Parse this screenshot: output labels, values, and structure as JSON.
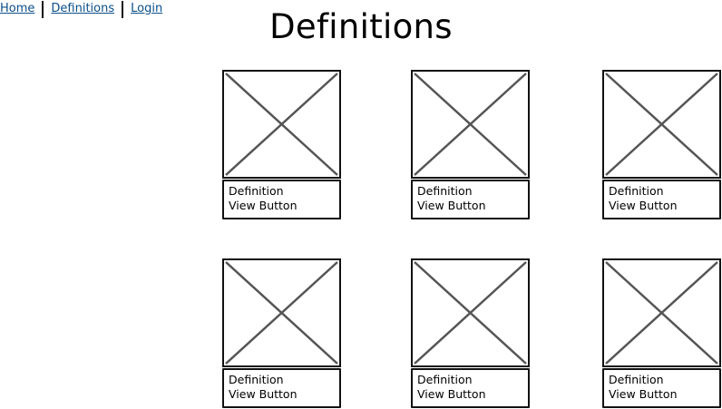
{
  "nav": {
    "items": [
      {
        "label": "Home"
      },
      {
        "label": "Definitions"
      },
      {
        "label": "Login"
      }
    ]
  },
  "page": {
    "title": "Definitions"
  },
  "cards": [
    {
      "definition": "Definition",
      "button": "View Button"
    },
    {
      "definition": "Definition",
      "button": "View Button"
    },
    {
      "definition": "Definition",
      "button": "View Button"
    },
    {
      "definition": "Definition",
      "button": "View Button"
    },
    {
      "definition": "Definition",
      "button": "View Button"
    },
    {
      "definition": "Definition",
      "button": "View Button"
    }
  ]
}
